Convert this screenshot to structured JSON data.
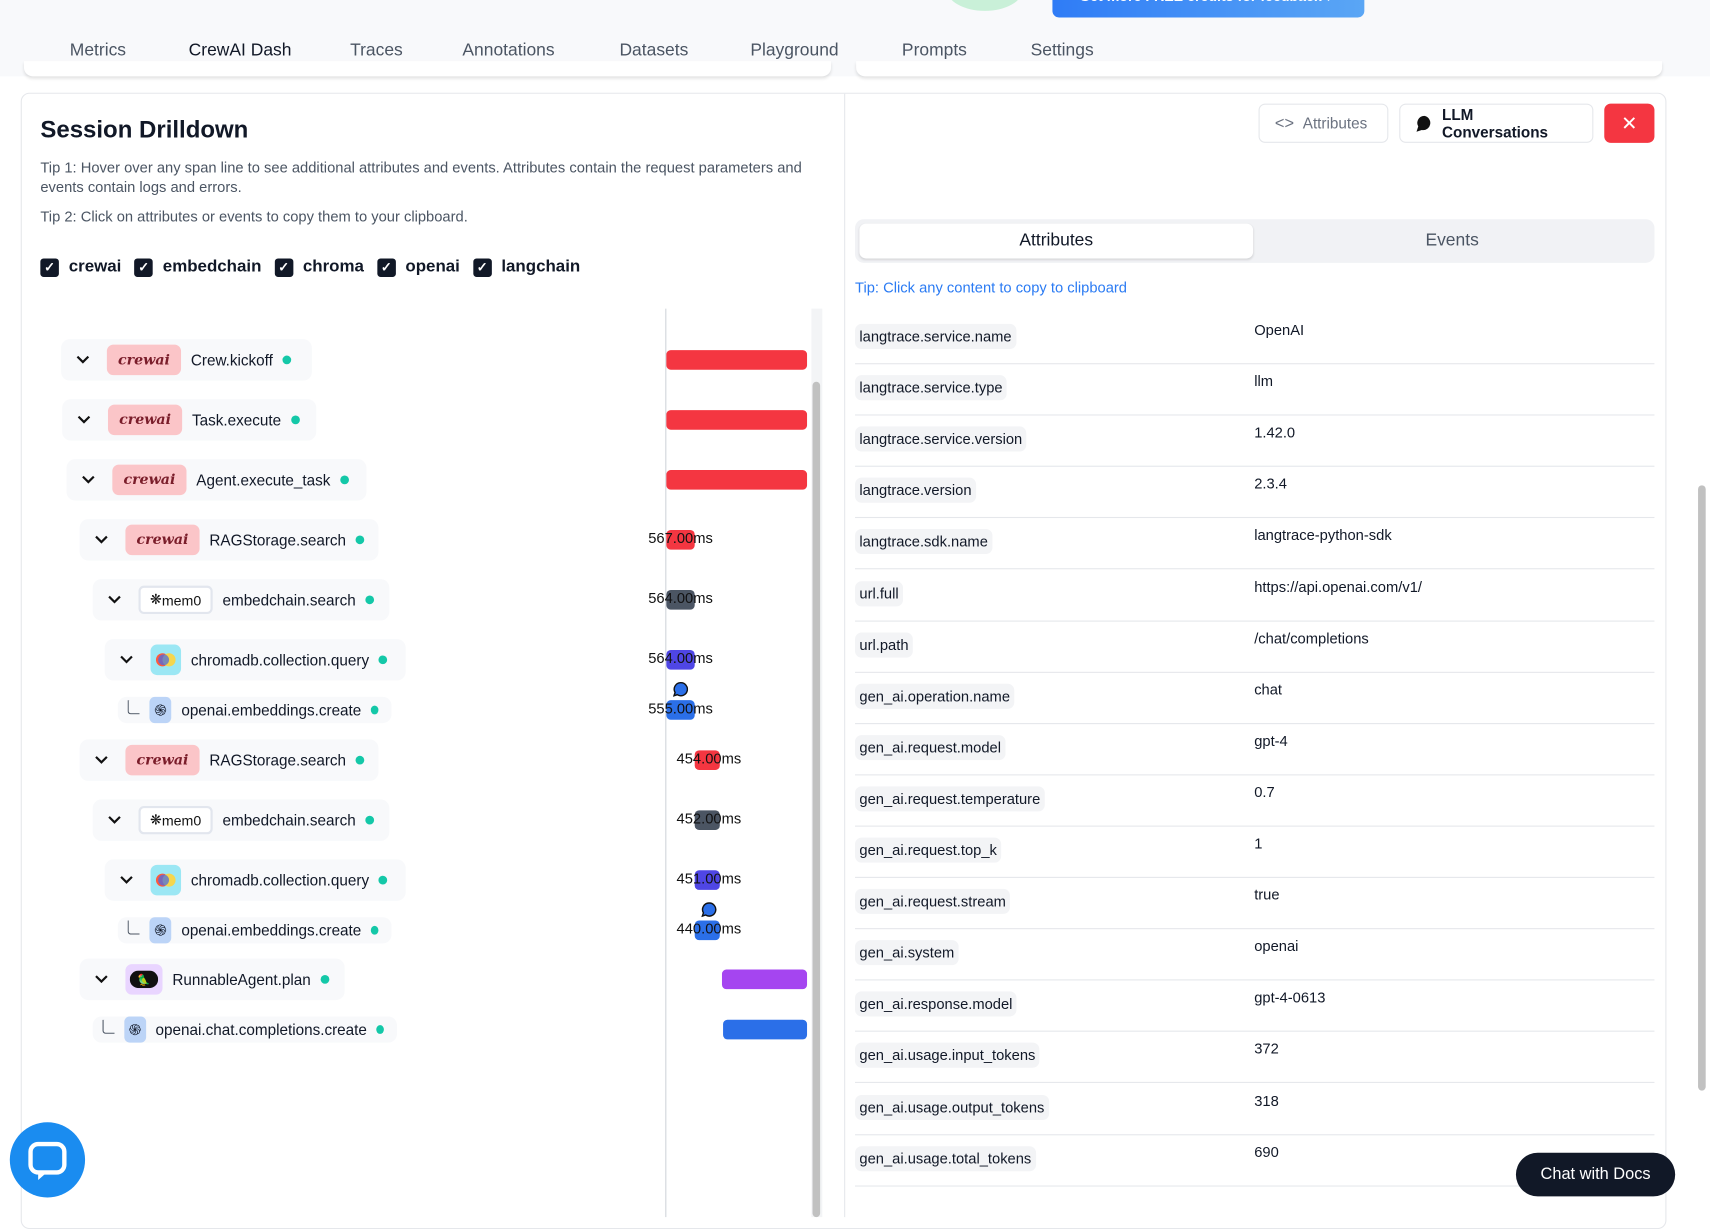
{
  "promo": {
    "label": "Get more FREE credits for feedback ↗"
  },
  "nav": {
    "tabs": [
      {
        "label": "Metrics"
      },
      {
        "label": "CrewAI Dash",
        "active": true
      },
      {
        "label": "Traces"
      },
      {
        "label": "Annotations"
      },
      {
        "label": "Datasets"
      },
      {
        "label": "Playground"
      },
      {
        "label": "Prompts"
      },
      {
        "label": "Settings"
      }
    ]
  },
  "drilldown": {
    "title": "Session Drilldown",
    "tip1": "Tip 1: Hover over any span line to see additional attributes and events. Attributes contain the request parameters and events contain logs and errors.",
    "tip2": "Tip 2: Click on attributes or events to copy them to your clipboard.",
    "filters": [
      {
        "label": "crewai",
        "checked": true
      },
      {
        "label": "embedchain",
        "checked": true
      },
      {
        "label": "chroma",
        "checked": true
      },
      {
        "label": "openai",
        "checked": true
      },
      {
        "label": "langchain",
        "checked": true
      }
    ],
    "spans": [
      {
        "name": "Crew.kickoff",
        "vendor": "crewai",
        "duration": "",
        "color": "#f43641"
      },
      {
        "name": "Task.execute",
        "vendor": "crewai",
        "duration": "",
        "color": "#f43641"
      },
      {
        "name": "Agent.execute_task",
        "vendor": "crewai",
        "duration": "",
        "color": "#f43641"
      },
      {
        "name": "RAGStorage.search",
        "vendor": "crewai",
        "duration": "567.00ms",
        "color": "#f43641"
      },
      {
        "name": "embedchain.search",
        "vendor": "mem0",
        "vendor_label": "mem0",
        "duration": "564.00ms",
        "color": "#4b5563"
      },
      {
        "name": "chromadb.collection.query",
        "vendor": "chroma",
        "duration": "564.00ms",
        "color": "#4f46e5"
      },
      {
        "name": "openai.embeddings.create",
        "vendor": "openai",
        "duration": "555.00ms",
        "color": "#2b6fe8",
        "event": true
      },
      {
        "name": "RAGStorage.search",
        "vendor": "crewai",
        "duration": "454.00ms",
        "color": "#f43641"
      },
      {
        "name": "embedchain.search",
        "vendor": "mem0",
        "vendor_label": "mem0",
        "duration": "452.00ms",
        "color": "#4b5563"
      },
      {
        "name": "chromadb.collection.query",
        "vendor": "chroma",
        "duration": "451.00ms",
        "color": "#4f46e5"
      },
      {
        "name": "openai.embeddings.create",
        "vendor": "openai",
        "duration": "440.00ms",
        "color": "#2b6fe8",
        "event": true
      },
      {
        "name": "RunnableAgent.plan",
        "vendor": "langchain",
        "duration": "",
        "color": "#a545f0"
      },
      {
        "name": "openai.chat.completions.create",
        "vendor": "openai",
        "duration": "",
        "color": "#2b6fe8"
      }
    ]
  },
  "detail": {
    "buttons": {
      "attributes": "Attributes",
      "llm": "LLM Conversations",
      "close": "✕"
    },
    "tabs": {
      "attributes": "Attributes",
      "events": "Events",
      "active": "Attributes"
    },
    "tip": "Tip: Click any content to copy to clipboard",
    "attributes": [
      {
        "key": "langtrace.service.name",
        "value": "OpenAI"
      },
      {
        "key": "langtrace.service.type",
        "value": "llm"
      },
      {
        "key": "langtrace.service.version",
        "value": "1.42.0"
      },
      {
        "key": "langtrace.version",
        "value": "2.3.4"
      },
      {
        "key": "langtrace.sdk.name",
        "value": "langtrace-python-sdk"
      },
      {
        "key": "url.full",
        "value": "https://api.openai.com/v1/"
      },
      {
        "key": "url.path",
        "value": "/chat/completions"
      },
      {
        "key": "gen_ai.operation.name",
        "value": "chat"
      },
      {
        "key": "gen_ai.request.model",
        "value": "gpt-4"
      },
      {
        "key": "gen_ai.request.temperature",
        "value": "0.7"
      },
      {
        "key": "gen_ai.request.top_k",
        "value": "1"
      },
      {
        "key": "gen_ai.request.stream",
        "value": "true"
      },
      {
        "key": "gen_ai.system",
        "value": "openai"
      },
      {
        "key": "gen_ai.response.model",
        "value": "gpt-4-0613"
      },
      {
        "key": "gen_ai.usage.input_tokens",
        "value": "372"
      },
      {
        "key": "gen_ai.usage.output_tokens",
        "value": "318"
      },
      {
        "key": "gen_ai.usage.total_tokens",
        "value": "690"
      }
    ]
  },
  "chat_docs": {
    "label": "Chat with Docs"
  }
}
